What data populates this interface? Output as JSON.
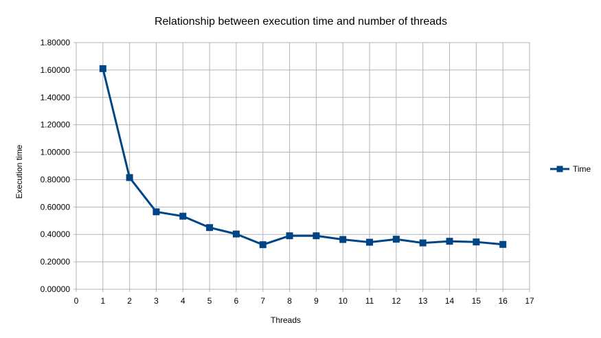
{
  "chart_data": {
    "type": "line",
    "title": "Relationship between execution time and number of threads",
    "xlabel": "Threads",
    "ylabel": "Execution time",
    "xlim": [
      0,
      17
    ],
    "ylim": [
      0,
      1.8
    ],
    "x_ticks": [
      "0",
      "1",
      "2",
      "3",
      "4",
      "5",
      "6",
      "7",
      "8",
      "9",
      "10",
      "11",
      "12",
      "13",
      "14",
      "15",
      "16",
      "17"
    ],
    "y_ticks": [
      "0.00000",
      "0.20000",
      "0.40000",
      "0.60000",
      "0.80000",
      "1.00000",
      "1.20000",
      "1.40000",
      "1.60000",
      "1.80000"
    ],
    "grid": true,
    "legend_position": "right",
    "series": [
      {
        "name": "Time",
        "color": "#004586",
        "marker": "square",
        "x": [
          1,
          2,
          3,
          4,
          5,
          6,
          7,
          8,
          9,
          10,
          11,
          12,
          13,
          14,
          15,
          16
        ],
        "y": [
          1.61,
          0.815,
          0.565,
          0.533,
          0.45,
          0.403,
          0.325,
          0.39,
          0.39,
          0.363,
          0.343,
          0.365,
          0.338,
          0.35,
          0.345,
          0.327
        ]
      }
    ]
  }
}
